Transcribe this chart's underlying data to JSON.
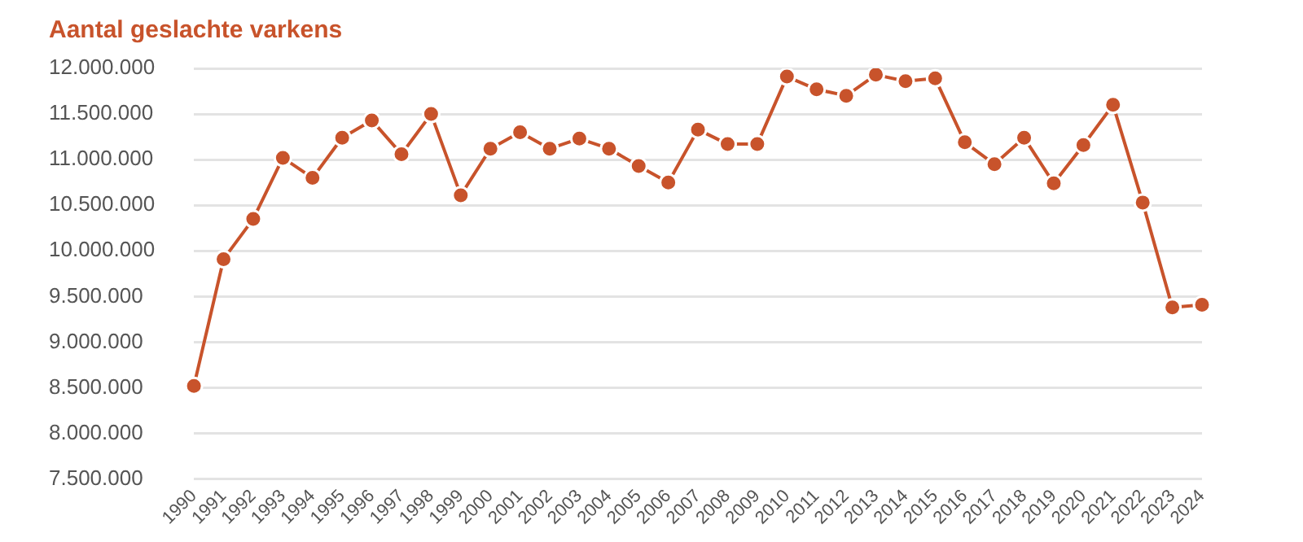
{
  "chart_data": {
    "type": "line",
    "title": "Aantal geslachte varkens",
    "categories": [
      "1990",
      "1991",
      "1992",
      "1993",
      "1994",
      "1995",
      "1996",
      "1997",
      "1998",
      "1999",
      "2000",
      "2001",
      "2002",
      "2003",
      "2004",
      "2005",
      "2006",
      "2007",
      "2008",
      "2009",
      "2010",
      "2011",
      "2012",
      "2013",
      "2014",
      "2015",
      "2016",
      "2017",
      "2018",
      "2019",
      "2020",
      "2021",
      "2022",
      "2023",
      "2024"
    ],
    "series": [
      {
        "color": "#c8532b",
        "values": [
          8520000,
          9910000,
          10350000,
          11020000,
          10800000,
          11240000,
          11430000,
          11060000,
          11500000,
          10610000,
          11120000,
          11300000,
          11120000,
          11230000,
          11120000,
          10930000,
          10750000,
          11330000,
          11170000,
          11170000,
          11910000,
          11770000,
          11700000,
          11930000,
          11860000,
          11890000,
          11190000,
          10950000,
          11240000,
          10740000,
          11160000,
          11600000,
          10530000,
          9380000,
          9410000
        ]
      }
    ],
    "ylim": [
      7500000,
      12000000
    ],
    "yticks": [
      {
        "value": 7500000,
        "label": "7.500.000"
      },
      {
        "value": 8000000,
        "label": "8.000.000"
      },
      {
        "value": 8500000,
        "label": "8.500.000"
      },
      {
        "value": 9000000,
        "label": "9.000.000"
      },
      {
        "value": 9500000,
        "label": "9.500.000"
      },
      {
        "value": 10000000,
        "label": "10.000.000"
      },
      {
        "value": 10500000,
        "label": "10.500.000"
      },
      {
        "value": 11000000,
        "label": "11.000.000"
      },
      {
        "value": 11500000,
        "label": "11.500.000"
      },
      {
        "value": 12000000,
        "label": "12.000.000"
      }
    ],
    "grid": "y",
    "legend": false,
    "marker": "circle",
    "line_style": "solid"
  }
}
